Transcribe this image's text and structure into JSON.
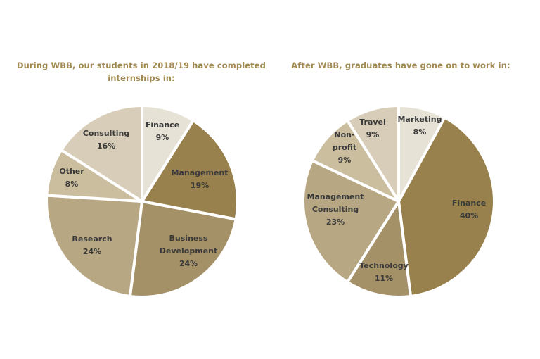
{
  "chart_data": [
    {
      "type": "pie",
      "title": "During WBB, our students in 2018/19 have completed internships in:",
      "slices": [
        {
          "label": "Finance",
          "label_lines": [
            "Finance",
            "9%"
          ],
          "value": 9,
          "color": "#e7e2d6"
        },
        {
          "label": "Management",
          "label_lines": [
            "Management",
            "19%"
          ],
          "value": 19,
          "color": "#98814c"
        },
        {
          "label": "Business Development",
          "label_lines": [
            "Business",
            "Development",
            "24%"
          ],
          "value": 24,
          "color": "#a59168"
        },
        {
          "label": "Research",
          "label_lines": [
            "Research",
            "24%"
          ],
          "value": 24,
          "color": "#b7a782"
        },
        {
          "label": "Other",
          "label_lines": [
            "Other",
            "8%"
          ],
          "value": 8,
          "color": "#cbbe9f"
        },
        {
          "label": "Consulting",
          "label_lines": [
            "Consulting",
            "16%"
          ],
          "value": 16,
          "color": "#d8cdb8"
        }
      ]
    },
    {
      "type": "pie",
      "title": "After WBB, graduates have gone on to work in:",
      "slices": [
        {
          "label": "Marketing",
          "label_lines": [
            "Marketing",
            "8%"
          ],
          "value": 8,
          "color": "#e7e2d6"
        },
        {
          "label": "Finance",
          "label_lines": [
            "Finance",
            "40%"
          ],
          "value": 40,
          "color": "#98814c"
        },
        {
          "label": "Technology",
          "label_lines": [
            "Technology",
            "11%"
          ],
          "value": 11,
          "color": "#a59168"
        },
        {
          "label": "Management Consulting",
          "label_lines": [
            "Management",
            "Consulting",
            "23%"
          ],
          "value": 23,
          "color": "#b7a782"
        },
        {
          "label": "Non-profit",
          "label_lines": [
            "Non-",
            "profit",
            "9%"
          ],
          "value": 9,
          "color": "#cbbe9f"
        },
        {
          "label": "Travel",
          "label_lines": [
            "Travel",
            "9%"
          ],
          "value": 9,
          "color": "#d8cdb8"
        }
      ]
    }
  ]
}
